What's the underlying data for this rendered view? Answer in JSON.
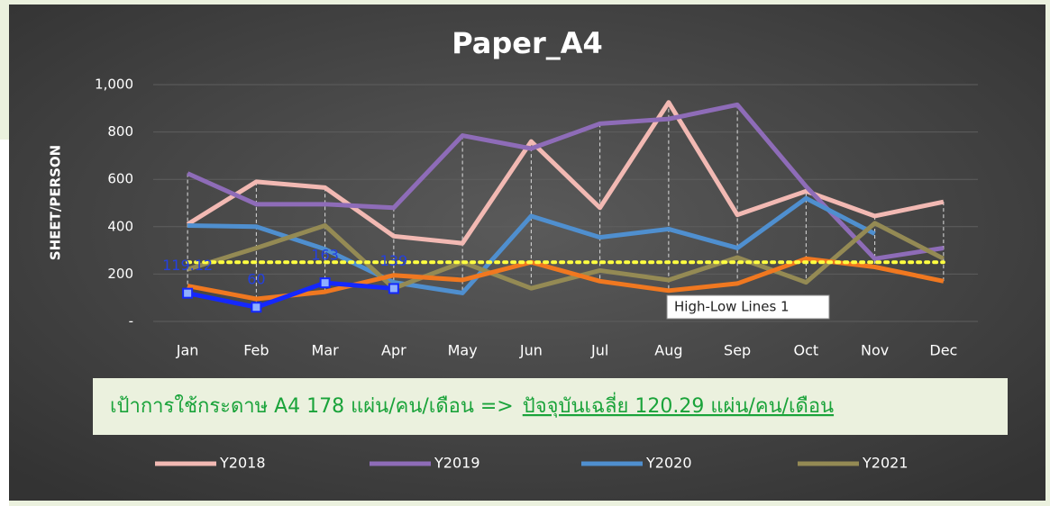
{
  "chart_data": {
    "type": "line",
    "title": "Paper_A4",
    "y_label": "SHEET/PERSON",
    "categories": [
      "Jan",
      "Feb",
      "Mar",
      "Apr",
      "May",
      "Jun",
      "Jul",
      "Aug",
      "Sep",
      "Oct",
      "Nov",
      "Dec"
    ],
    "ylim": [
      0,
      1000
    ],
    "yticks": [
      {
        "value": 0,
        "label": "-"
      },
      200,
      400,
      600,
      800,
      {
        "value": 1000,
        "label": "1,000"
      }
    ],
    "grid": true,
    "series": [
      {
        "name": "Y2018",
        "color": "#f2b9b3",
        "values": [
          410,
          590,
          565,
          360,
          330,
          760,
          480,
          925,
          450,
          550,
          445,
          505
        ]
      },
      {
        "name": "Y2019",
        "color": "#8e6cb8",
        "values": [
          625,
          495,
          495,
          480,
          785,
          730,
          835,
          855,
          915,
          570,
          265,
          310
        ]
      },
      {
        "name": "Y2020",
        "color": "#4f8fcf",
        "values": [
          405,
          400,
          305,
          165,
          120,
          445,
          355,
          390,
          310,
          520,
          370,
          null
        ]
      },
      {
        "name": "Y2021",
        "color": "#948a54",
        "values": [
          220,
          310,
          405,
          140,
          250,
          140,
          215,
          175,
          270,
          165,
          415,
          265
        ]
      },
      {
        "color": "#f07820",
        "values": [
          150,
          95,
          125,
          195,
          175,
          250,
          170,
          130,
          160,
          265,
          230,
          170
        ]
      },
      {
        "color": "#ffff40",
        "dotted": true,
        "values": [
          250,
          250,
          250,
          250,
          250,
          250,
          250,
          250,
          250,
          250,
          250,
          250
        ]
      },
      {
        "color": "#1428ff",
        "markers": true,
        "data_labels": true,
        "label_color": "#2440e0",
        "values": [
          119.12,
          60,
          163,
          139,
          null,
          null,
          null,
          null,
          null,
          null,
          null,
          null
        ]
      }
    ],
    "annotation": "High-Low Lines 1",
    "banner_text": "เป้าการใช้กระดาษ A4 178 แผ่น/คน/เดือน  =>",
    "banner_underlined": "ปัจจุบันเฉลี่ย 120.29 แผ่น/คน/เดือน"
  }
}
